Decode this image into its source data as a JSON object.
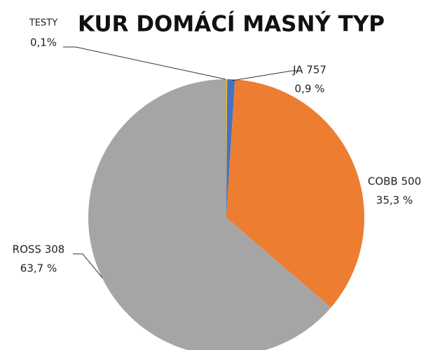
{
  "chart_data": {
    "type": "pie",
    "title": "KUR DOMÁCÍ MASNÝ TYP",
    "categories": [
      "TESTY",
      "JA 757",
      "COBB 500",
      "ROSS 308"
    ],
    "values": [
      0.1,
      0.9,
      35.3,
      63.7
    ],
    "value_labels": [
      "0,1%",
      "0,9 %",
      "35,3 %",
      "63,7 %"
    ],
    "colors": [
      "#ffc000",
      "#4472c4",
      "#ed7d31",
      "#a5a5a5"
    ]
  }
}
